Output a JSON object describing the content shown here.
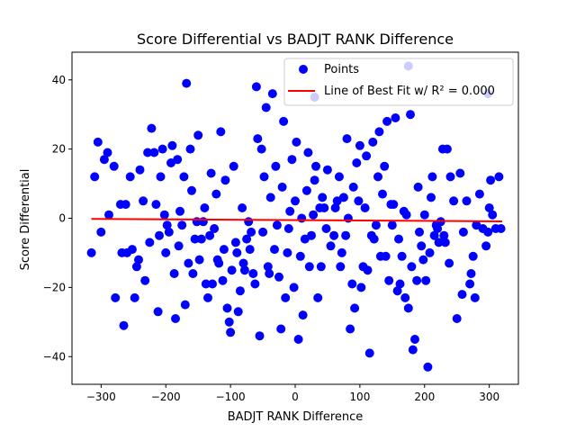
{
  "chart_data": {
    "type": "scatter",
    "title": "Score Differential vs BADJT RANK Difference",
    "xlabel": "BADJT RANK Difference",
    "ylabel": "Score Differential",
    "xlim": [
      -345,
      345
    ],
    "ylim": [
      -48,
      48
    ],
    "xticks": [
      -300,
      -200,
      -100,
      0,
      100,
      200,
      300
    ],
    "yticks": [
      -40,
      -20,
      0,
      20,
      40
    ],
    "xtick_labels": [
      "−300",
      "−200",
      "−100",
      "0",
      "100",
      "200",
      "300"
    ],
    "ytick_labels": [
      "−40",
      "−20",
      "0",
      "20",
      "40"
    ],
    "grid": false,
    "legend_position": "top-right",
    "series": [
      {
        "name": "Points",
        "kind": "scatter",
        "color": "#0000ff",
        "points": [
          [
            -315,
            -10
          ],
          [
            -310,
            12
          ],
          [
            -305,
            22
          ],
          [
            -300,
            -4
          ],
          [
            -295,
            17
          ],
          [
            -290,
            19
          ],
          [
            -288,
            1
          ],
          [
            -280,
            15
          ],
          [
            -278,
            -23
          ],
          [
            -270,
            4
          ],
          [
            -268,
            -10
          ],
          [
            -265,
            -31
          ],
          [
            -262,
            4
          ],
          [
            -260,
            -10
          ],
          [
            -255,
            12
          ],
          [
            -252,
            -9
          ],
          [
            -248,
            -23
          ],
          [
            -245,
            -14
          ],
          [
            -242,
            -12
          ],
          [
            -240,
            14
          ],
          [
            -235,
            5
          ],
          [
            -232,
            -18
          ],
          [
            -228,
            19
          ],
          [
            -225,
            -7
          ],
          [
            -222,
            26
          ],
          [
            -218,
            19
          ],
          [
            -215,
            4
          ],
          [
            -212,
            -27
          ],
          [
            -210,
            -5
          ],
          [
            -208,
            12
          ],
          [
            -205,
            20
          ],
          [
            -202,
            1
          ],
          [
            -200,
            -10
          ],
          [
            -198,
            -2
          ],
          [
            -195,
            -4
          ],
          [
            -192,
            16
          ],
          [
            -190,
            21
          ],
          [
            -187,
            -16
          ],
          [
            -185,
            -29
          ],
          [
            -182,
            17
          ],
          [
            -180,
            -8
          ],
          [
            -178,
            2
          ],
          [
            -175,
            -2
          ],
          [
            -172,
            12
          ],
          [
            -170,
            -25
          ],
          [
            -168,
            39
          ],
          [
            -165,
            -13
          ],
          [
            -162,
            20
          ],
          [
            -160,
            8
          ],
          [
            -158,
            -16
          ],
          [
            -155,
            -6
          ],
          [
            -152,
            -1
          ],
          [
            -150,
            24
          ],
          [
            -148,
            -12
          ],
          [
            -145,
            -6
          ],
          [
            -142,
            -1
          ],
          [
            -140,
            3
          ],
          [
            -138,
            -19
          ],
          [
            -135,
            -23
          ],
          [
            -132,
            -5
          ],
          [
            -130,
            13
          ],
          [
            -128,
            -19
          ],
          [
            -125,
            -3
          ],
          [
            -122,
            7
          ],
          [
            -120,
            -12
          ],
          [
            -118,
            -13
          ],
          [
            -115,
            25
          ],
          [
            -112,
            -18
          ],
          [
            -110,
            -9
          ],
          [
            -108,
            11
          ],
          [
            -105,
            -26
          ],
          [
            -102,
            -30
          ],
          [
            -100,
            -33
          ],
          [
            -98,
            -15
          ],
          [
            -95,
            15
          ],
          [
            -92,
            -7
          ],
          [
            -90,
            -10
          ],
          [
            -88,
            -27
          ],
          [
            -85,
            -21
          ],
          [
            -82,
            3
          ],
          [
            -80,
            -13
          ],
          [
            -78,
            -15
          ],
          [
            -75,
            -6
          ],
          [
            -72,
            -1
          ],
          [
            -70,
            -9
          ],
          [
            -68,
            -4
          ],
          [
            -65,
            -16
          ],
          [
            -62,
            -19
          ],
          [
            -60,
            38
          ],
          [
            -58,
            23
          ],
          [
            -55,
            -34
          ],
          [
            -52,
            20
          ],
          [
            -50,
            -4
          ],
          [
            -48,
            12
          ],
          [
            -45,
            32
          ],
          [
            -42,
            -14
          ],
          [
            -40,
            -16
          ],
          [
            -38,
            6
          ],
          [
            -35,
            36
          ],
          [
            -32,
            -9
          ],
          [
            -30,
            15
          ],
          [
            -28,
            -2
          ],
          [
            -25,
            -17
          ],
          [
            -22,
            -32
          ],
          [
            -20,
            9
          ],
          [
            -18,
            28
          ],
          [
            -15,
            -23
          ],
          [
            -12,
            -10
          ],
          [
            -10,
            -3
          ],
          [
            -8,
            2
          ],
          [
            -5,
            17
          ],
          [
            -2,
            -20
          ],
          [
            0,
            5
          ],
          [
            2,
            22
          ],
          [
            5,
            -35
          ],
          [
            8,
            -11
          ],
          [
            10,
            0
          ],
          [
            12,
            -28
          ],
          [
            15,
            -6
          ],
          [
            18,
            8
          ],
          [
            20,
            19
          ],
          [
            22,
            -14
          ],
          [
            25,
            -5
          ],
          [
            28,
            1
          ],
          [
            30,
            11
          ],
          [
            32,
            15
          ],
          [
            35,
            -23
          ],
          [
            38,
            3
          ],
          [
            40,
            -14
          ],
          [
            42,
            6
          ],
          [
            45,
            3
          ],
          [
            48,
            -3
          ],
          [
            50,
            14
          ],
          [
            55,
            -8
          ],
          [
            60,
            -5
          ],
          [
            62,
            3
          ],
          [
            65,
            5
          ],
          [
            68,
            12
          ],
          [
            70,
            -14
          ],
          [
            72,
            -10
          ],
          [
            75,
            6
          ],
          [
            78,
            -5
          ],
          [
            80,
            23
          ],
          [
            82,
            0
          ],
          [
            85,
            -32
          ],
          [
            88,
            -19
          ],
          [
            90,
            9
          ],
          [
            92,
            -26
          ],
          [
            95,
            16
          ],
          [
            98,
            5
          ],
          [
            100,
            21
          ],
          [
            102,
            -20
          ],
          [
            105,
            -14
          ],
          [
            108,
            3
          ],
          [
            110,
            18
          ],
          [
            112,
            -15
          ],
          [
            115,
            -39
          ],
          [
            118,
            -5
          ],
          [
            120,
            22
          ],
          [
            122,
            -6
          ],
          [
            125,
            -2
          ],
          [
            128,
            12
          ],
          [
            130,
            25
          ],
          [
            132,
            -11
          ],
          [
            135,
            7
          ],
          [
            138,
            15
          ],
          [
            140,
            -11
          ],
          [
            142,
            28
          ],
          [
            145,
            -18
          ],
          [
            148,
            4
          ],
          [
            150,
            -2
          ],
          [
            152,
            4
          ],
          [
            155,
            29
          ],
          [
            158,
            -21
          ],
          [
            160,
            -6
          ],
          [
            162,
            -19
          ],
          [
            165,
            -11
          ],
          [
            168,
            2
          ],
          [
            170,
            -23
          ],
          [
            172,
            1
          ],
          [
            175,
            -26
          ],
          [
            178,
            30
          ],
          [
            180,
            -14
          ],
          [
            182,
            -38
          ],
          [
            185,
            -35
          ],
          [
            188,
            -18
          ],
          [
            190,
            9
          ],
          [
            192,
            -4
          ],
          [
            195,
            -8
          ],
          [
            198,
            -12
          ],
          [
            200,
            1
          ],
          [
            202,
            -18
          ],
          [
            205,
            -43
          ],
          [
            208,
            -10
          ],
          [
            210,
            6
          ],
          [
            212,
            12
          ],
          [
            215,
            -5
          ],
          [
            218,
            -2
          ],
          [
            220,
            -3
          ],
          [
            222,
            -7
          ],
          [
            225,
            -1
          ],
          [
            228,
            20
          ],
          [
            230,
            -5
          ],
          [
            232,
            -7
          ],
          [
            235,
            20
          ],
          [
            238,
            -13
          ],
          [
            240,
            12
          ],
          [
            245,
            5
          ],
          [
            250,
            -29
          ],
          [
            255,
            13
          ],
          [
            258,
            -22
          ],
          [
            260,
            -4
          ],
          [
            265,
            5
          ],
          [
            270,
            -19
          ],
          [
            272,
            -16
          ],
          [
            275,
            -11
          ],
          [
            278,
            -23
          ],
          [
            280,
            -2
          ],
          [
            285,
            7
          ],
          [
            290,
            -3
          ],
          [
            295,
            -8
          ],
          [
            298,
            -4
          ],
          [
            300,
            3
          ],
          [
            302,
            11
          ],
          [
            305,
            1
          ],
          [
            310,
            -3
          ],
          [
            315,
            12
          ],
          [
            318,
            -3
          ],
          [
            175,
            44
          ],
          [
            30,
            35
          ],
          [
            298,
            36
          ]
        ]
      },
      {
        "name": "Line of Best Fit w/ R² = 0.000",
        "kind": "line",
        "color": "#ff0000",
        "x": [
          -315,
          320
        ],
        "y": [
          -0.2,
          -0.9
        ]
      }
    ]
  }
}
